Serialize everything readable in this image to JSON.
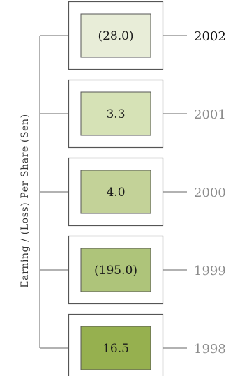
{
  "chart_data": {
    "type": "table",
    "ylabel": "Earning / (Loss) Per Share (Sen)",
    "categories": [
      "2002",
      "2001",
      "2000",
      "1999",
      "1998"
    ],
    "values": [
      "(28.0)",
      "3.3",
      "4.0",
      "(195.0)",
      "16.5"
    ],
    "numeric_values": [
      -28.0,
      3.3,
      4.0,
      -195.0,
      16.5
    ],
    "box_colors": [
      "#e8edd8",
      "#d6e2b6",
      "#c3d298",
      "#aec47a",
      "#96b04f"
    ],
    "highlight_category": "2002",
    "colors": {
      "highlight_year": "#111111",
      "year": "#8c8c8c",
      "line": "#666666",
      "frame": "#555555"
    }
  }
}
